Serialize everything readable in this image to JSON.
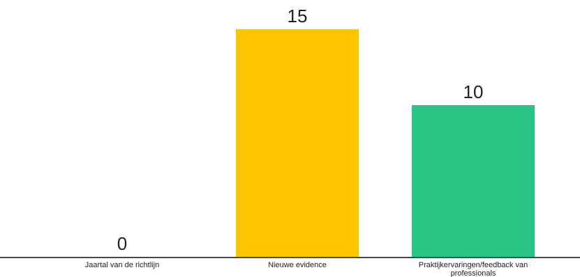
{
  "chart_data": {
    "type": "bar",
    "categories": [
      "Jaartal van de richtlijn",
      "Nieuwe evidence",
      "Praktijkervaringen/feedback van professionals"
    ],
    "category_lines": [
      [
        "Jaartal van de richtlijn"
      ],
      [
        "Nieuwe evidence"
      ],
      [
        "Praktijkervaringen/feedback van",
        "professionals"
      ]
    ],
    "values": [
      0,
      15,
      10
    ],
    "colors": [
      "#bfbfbf",
      "#fdc400",
      "#2cc484"
    ],
    "ylim": [
      0,
      15
    ],
    "grid": false,
    "legend": "none",
    "axis_color": "#3d4a55"
  }
}
